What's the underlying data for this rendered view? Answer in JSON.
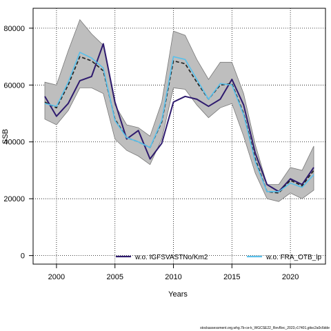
{
  "chart_data": {
    "type": "line",
    "xlabel": "Years",
    "ylabel": "SSB",
    "xlim": [
      1998,
      2023
    ],
    "ylim": [
      -3000,
      87000
    ],
    "x_ticks": [
      2000,
      2005,
      2010,
      2015,
      2020
    ],
    "y_ticks": [
      0,
      20000,
      40000,
      60000,
      80000
    ],
    "grid": true,
    "band": {
      "x": [
        1999,
        2000,
        2001,
        2002,
        2003,
        2004,
        2005,
        2006,
        2007,
        2008,
        2009,
        2010,
        2011,
        2012,
        2013,
        2014,
        2015,
        2016,
        2017,
        2018,
        2019,
        2020,
        2021,
        2022
      ],
      "lower": [
        48000,
        46000,
        51000,
        59000,
        59000,
        57000,
        41000,
        37000,
        35000,
        32000,
        41000,
        59000,
        58500,
        53000,
        48500,
        52000,
        53500,
        42000,
        29000,
        20000,
        19000,
        22000,
        20000,
        23000
      ],
      "upper": [
        61000,
        60000,
        72000,
        83000,
        78000,
        74000,
        53000,
        46000,
        45000,
        42000,
        54000,
        79000,
        77500,
        69000,
        62000,
        68000,
        68000,
        57000,
        39000,
        25000,
        25000,
        31000,
        30000,
        38500
      ],
      "color": "#bebebe"
    },
    "series": [
      {
        "name": "w.o. IGFSVASTNo/Km2",
        "color": "#2e1a6e",
        "dash": "solid",
        "x": [
          1999,
          2000,
          2001,
          2002,
          2003,
          2004,
          2005,
          2006,
          2007,
          2008,
          2009,
          2010,
          2011,
          2012,
          2013,
          2014,
          2015,
          2016,
          2017,
          2018,
          2019,
          2020,
          2021,
          2022
        ],
        "values": [
          56000,
          49000,
          53500,
          61500,
          63000,
          74500,
          54000,
          41000,
          44000,
          34000,
          39500,
          54000,
          56000,
          55000,
          52500,
          55000,
          62000,
          53000,
          36000,
          25000,
          22500,
          27000,
          25000,
          31000
        ]
      },
      {
        "name": "",
        "color": "#222222",
        "dash": "dashed",
        "x": [
          1999,
          2000,
          2001,
          2002,
          2003,
          2004,
          2005,
          2006,
          2007,
          2008,
          2009,
          2010,
          2011,
          2012,
          2013,
          2014,
          2015,
          2016,
          2017,
          2018,
          2019,
          2020,
          2021,
          2022
        ],
        "values": [
          54000,
          52000,
          60000,
          70000,
          68500,
          65000,
          48000,
          41500,
          40000,
          38000,
          47000,
          68500,
          67500,
          61000,
          55000,
          60000,
          60500,
          50000,
          34000,
          22500,
          22000,
          26500,
          24500,
          30000
        ]
      },
      {
        "name": "w.o. FRA_OTB_lp",
        "color": "#5bc0ea",
        "dash": "solid",
        "x": [
          1999,
          2000,
          2001,
          2002,
          2003,
          2004,
          2005,
          2006,
          2007,
          2008,
          2009,
          2010,
          2011,
          2012,
          2013,
          2014,
          2015,
          2016,
          2017,
          2018,
          2019,
          2020,
          2021,
          2022
        ],
        "values": [
          53500,
          52500,
          61000,
          71500,
          69500,
          66000,
          47500,
          41500,
          40000,
          38000,
          47500,
          70000,
          69000,
          62000,
          55000,
          60500,
          60000,
          49500,
          33000,
          22500,
          22500,
          25500,
          24000,
          28500
        ]
      }
    ],
    "footnote": "stockassessment.org,whg.7b-ce-k_WGCSE22_RevRec_2023,r17401,gitsc2a0c6dde"
  }
}
